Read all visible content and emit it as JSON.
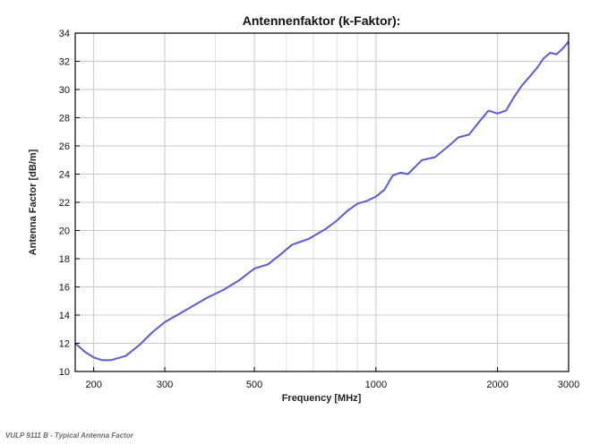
{
  "chart_data": {
    "type": "line",
    "title": "Antennenfaktor (k-Faktor):",
    "xlabel": "Frequency [MHz]",
    "ylabel": "Antenna Factor [dB/m]",
    "xscale": "log",
    "xlim": [
      180,
      3000
    ],
    "ylim": [
      10,
      34
    ],
    "x_ticks": [
      200,
      300,
      500,
      1000,
      2000,
      3000
    ],
    "x_tick_labels": [
      "200",
      "300",
      "500",
      "1000",
      "2000",
      "3000"
    ],
    "x_minor_grid": [
      400,
      600,
      700,
      800,
      900
    ],
    "y_ticks": [
      10,
      12,
      14,
      16,
      18,
      20,
      22,
      24,
      26,
      28,
      30,
      32,
      34
    ],
    "y_tick_labels": [
      "10",
      "12",
      "14",
      "16",
      "18",
      "20",
      "22",
      "24",
      "26",
      "28",
      "30",
      "32",
      "34"
    ],
    "grid": true,
    "series": [
      {
        "color": "#5b5bd6",
        "x": [
          180,
          190,
          200,
          210,
          220,
          240,
          260,
          280,
          300,
          340,
          380,
          420,
          460,
          500,
          540,
          580,
          620,
          680,
          750,
          800,
          850,
          900,
          950,
          1000,
          1050,
          1100,
          1150,
          1200,
          1300,
          1400,
          1500,
          1600,
          1700,
          1800,
          1900,
          2000,
          2100,
          2200,
          2300,
          2400,
          2500,
          2600,
          2700,
          2800,
          2900,
          3000
        ],
        "y": [
          12.0,
          11.4,
          11.0,
          10.8,
          10.8,
          11.1,
          11.9,
          12.8,
          13.5,
          14.4,
          15.2,
          15.8,
          16.5,
          17.3,
          17.6,
          18.3,
          19.0,
          19.4,
          20.1,
          20.7,
          21.4,
          21.9,
          22.1,
          22.4,
          22.9,
          23.9,
          24.1,
          24.0,
          25.0,
          25.2,
          25.9,
          26.6,
          26.8,
          27.7,
          28.5,
          28.3,
          28.5,
          29.5,
          30.3,
          30.9,
          31.5,
          32.2,
          32.6,
          32.5,
          32.9,
          33.4
        ]
      }
    ]
  },
  "caption": "VULP 9111 B - Typical Antenna Factor"
}
